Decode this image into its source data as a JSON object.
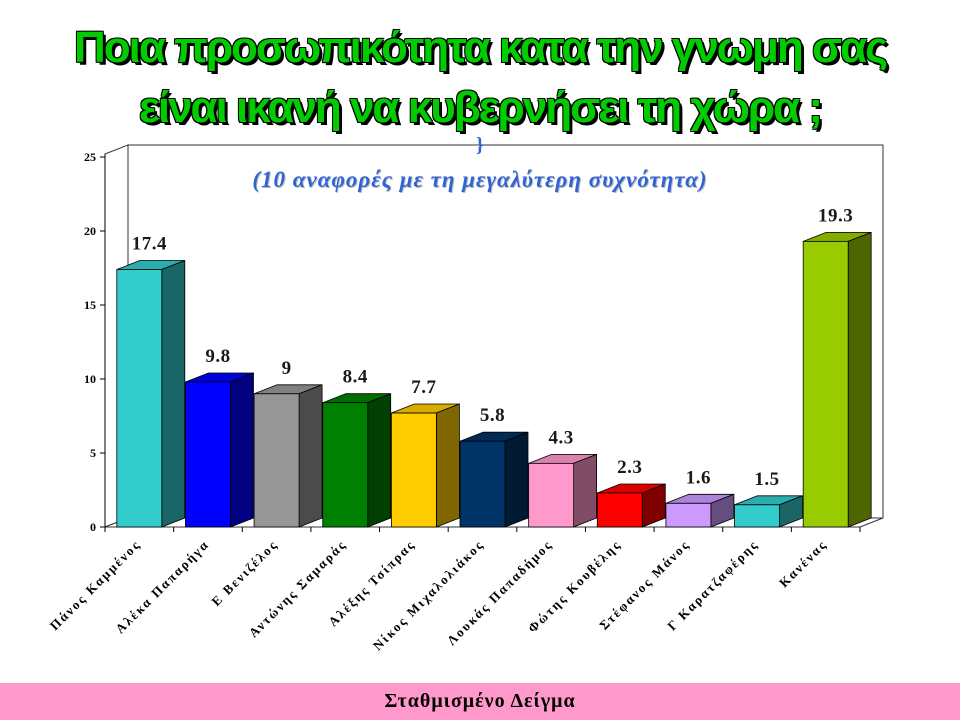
{
  "slide": {
    "title_lines": [
      "Ποια προσωπικότητα κατα την γνωμη σας",
      "είναι ικανή να κυβερνήσει τη χώρα ;"
    ],
    "footer": "Σταθμισμένο Δείγμα"
  },
  "colors": {
    "title": "#00CC00",
    "subtitle": "#2F63D6",
    "footer_band": "#FF99CC"
  },
  "chart_data": {
    "type": "bar",
    "three_d": true,
    "subtitle_mark": "}",
    "subtitle": "(10 αναφορές με τη μεγαλύτερη συχνότητα)",
    "categories": [
      "Πάνος Καμμένος",
      "Αλέκα Παπαρήγα",
      "Ε Βενιζέλος",
      "Αντώνης Σαμαράς",
      "Αλέξης Τσίπρας",
      "Νίκος Μιχαλολιάκος",
      "Λουκάς Παπαδήμος",
      "Φώτης Κουβέλης",
      "Στέφανος Μάνος",
      "Γ Καρατζαφέρης",
      "Κανένας"
    ],
    "values": [
      17.4,
      9.8,
      9,
      8.4,
      7.7,
      5.8,
      4.3,
      2.3,
      1.6,
      1.5,
      19.3
    ],
    "colors": [
      "#33CCCC",
      "#0000FF",
      "#969696",
      "#008000",
      "#FFCC00",
      "#003366",
      "#FF99CC",
      "#FF0000",
      "#CC99FF",
      "#33CCCC",
      "#99CC00"
    ],
    "ylim": [
      0,
      25
    ],
    "yticks": [
      0,
      5,
      10,
      15,
      20,
      25
    ],
    "data_labels": true,
    "grid": false,
    "show_legend": false
  }
}
